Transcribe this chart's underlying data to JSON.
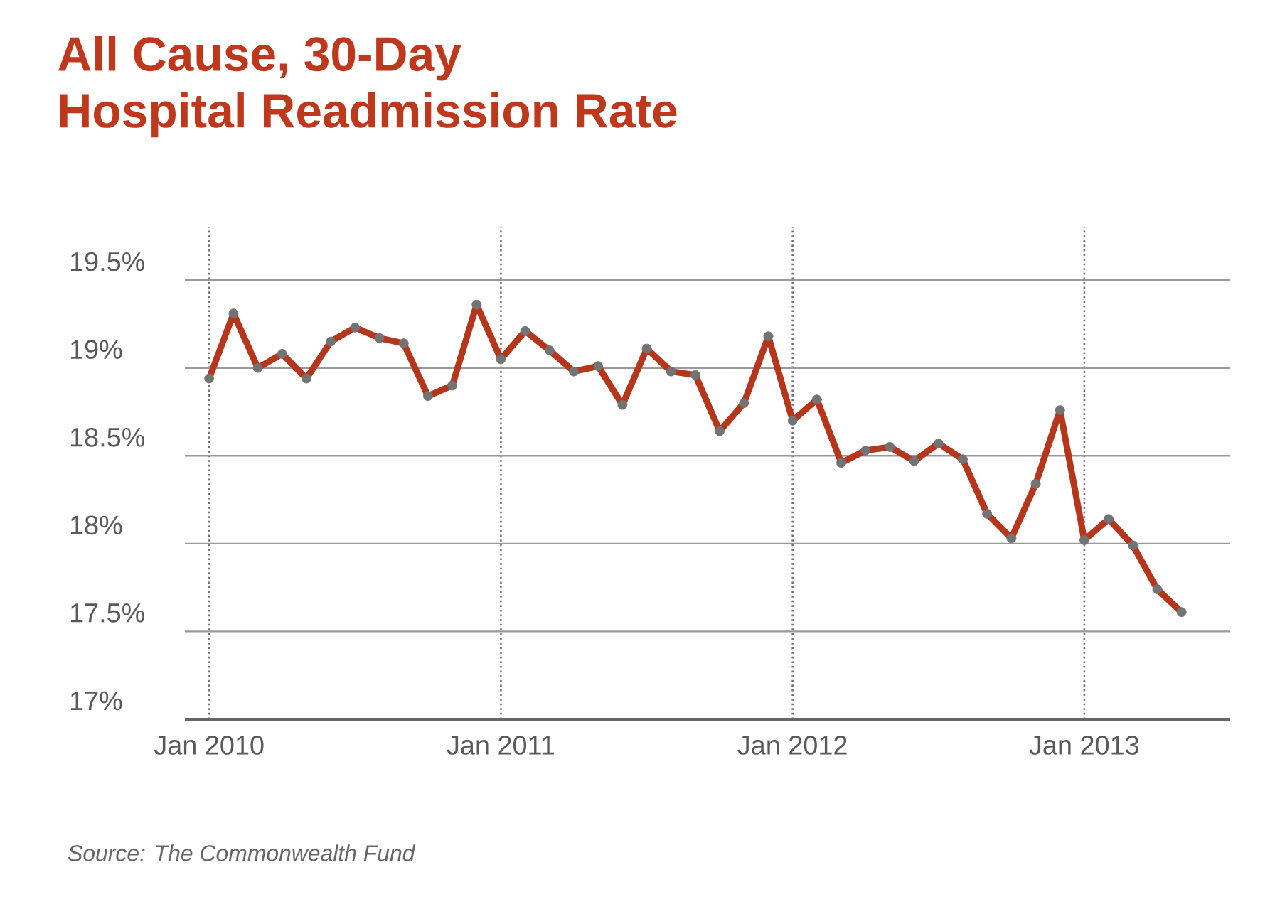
{
  "chart_data": {
    "type": "line",
    "title": "All Cause, 30-Day\nHospital Readmission Rate",
    "x": [
      "2010-01",
      "2010-02",
      "2010-03",
      "2010-04",
      "2010-05",
      "2010-06",
      "2010-07",
      "2010-08",
      "2010-09",
      "2010-10",
      "2010-11",
      "2010-12",
      "2011-01",
      "2011-02",
      "2011-03",
      "2011-04",
      "2011-05",
      "2011-06",
      "2011-07",
      "2011-08",
      "2011-09",
      "2011-10",
      "2011-11",
      "2011-12",
      "2012-01",
      "2012-02",
      "2012-03",
      "2012-04",
      "2012-05",
      "2012-06",
      "2012-07",
      "2012-08",
      "2012-09",
      "2012-10",
      "2012-11",
      "2012-12",
      "2013-01",
      "2013-02",
      "2013-03",
      "2013-04",
      "2013-05"
    ],
    "series": [
      {
        "color": "#b5361b",
        "values": [
          18.94,
          19.31,
          19.0,
          19.08,
          18.94,
          19.15,
          19.23,
          19.17,
          19.14,
          18.84,
          18.9,
          19.36,
          19.05,
          19.21,
          19.1,
          18.98,
          19.01,
          18.79,
          19.11,
          18.98,
          18.96,
          18.64,
          18.8,
          19.18,
          18.7,
          18.82,
          18.46,
          18.53,
          18.55,
          18.47,
          18.57,
          18.48,
          18.17,
          18.03,
          18.34,
          18.76,
          18.02,
          18.14,
          17.99,
          17.74,
          17.61
        ]
      }
    ],
    "marker": "circle",
    "xlim": [
      "2009-12",
      "2013-07"
    ],
    "xticks": [
      {
        "value": "2010-01",
        "label": "Jan 2010"
      },
      {
        "value": "2011-01",
        "label": "Jan 2011"
      },
      {
        "value": "2012-01",
        "label": "Jan 2012"
      },
      {
        "value": "2013-01",
        "label": "Jan 2013"
      }
    ],
    "ylim": [
      17,
      19.8
    ],
    "yticks": [
      {
        "value": 17,
        "label": "17%"
      },
      {
        "value": 17.5,
        "label": "17.5%"
      },
      {
        "value": 18,
        "label": "18%"
      },
      {
        "value": 18.5,
        "label": "18.5%"
      },
      {
        "value": 19,
        "label": "19%"
      },
      {
        "value": 19.5,
        "label": "19.5%"
      }
    ],
    "grid": true,
    "annotations": [
      "Source: The Commonwealth Fund"
    ]
  }
}
